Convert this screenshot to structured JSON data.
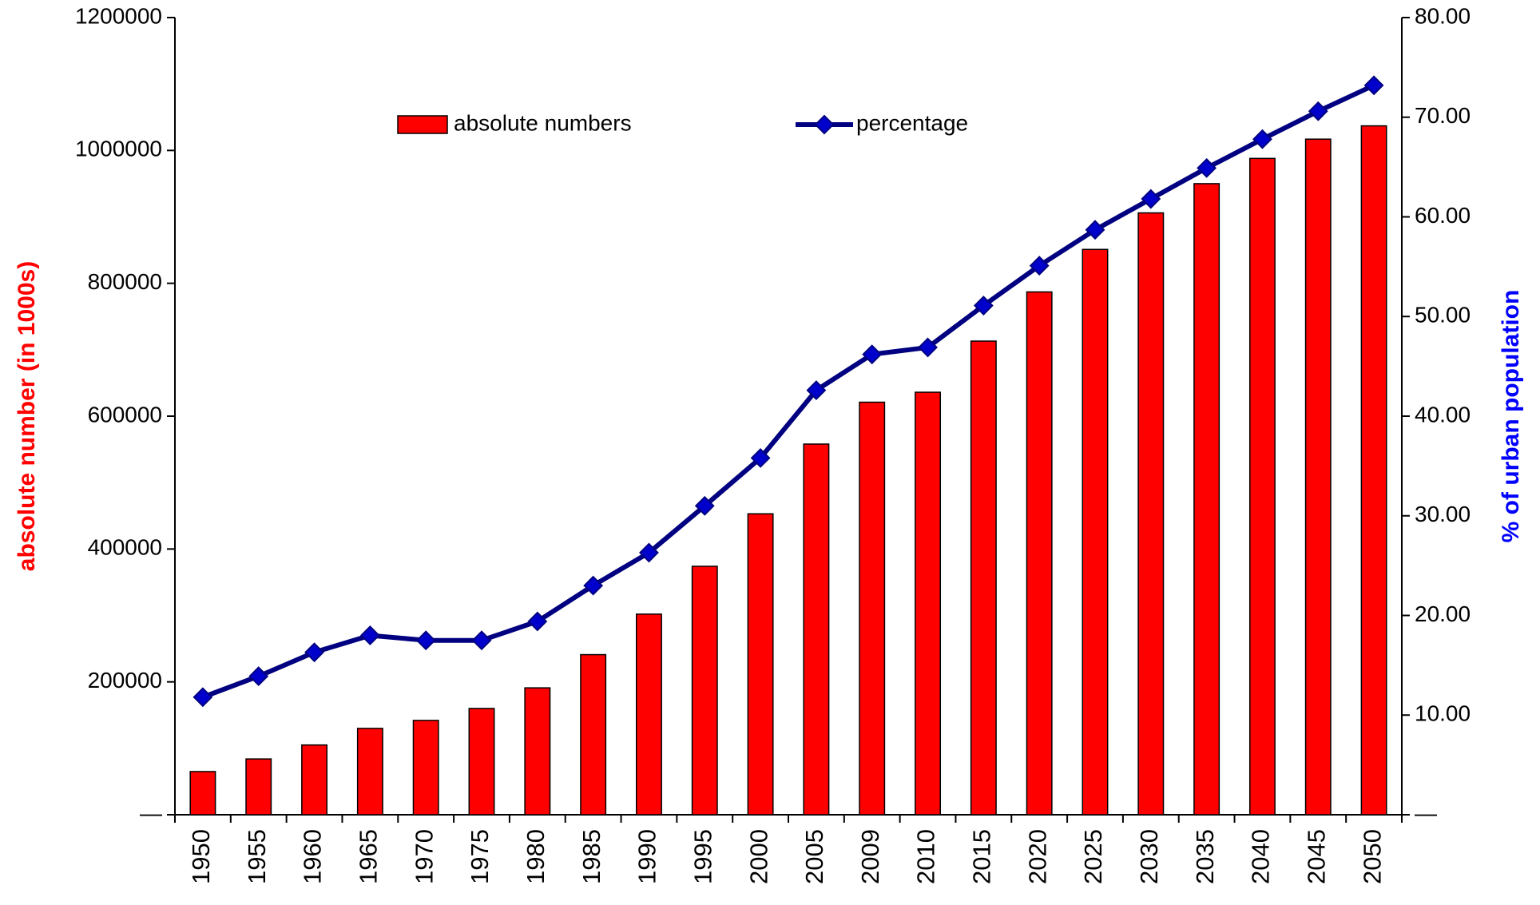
{
  "chart_data": {
    "type": "bar_line",
    "categories": [
      "1950",
      "1955",
      "1960",
      "1965",
      "1970",
      "1975",
      "1980",
      "1985",
      "1990",
      "1995",
      "2000",
      "2005",
      "2009",
      "2010",
      "2015",
      "2020",
      "2025",
      "2030",
      "2035",
      "2040",
      "2045",
      "2050"
    ],
    "series": [
      {
        "name": "absolute numbers",
        "type": "bar",
        "color": "#ff0000",
        "axis": "y",
        "values": [
          65000,
          84000,
          105000,
          130000,
          142000,
          160000,
          191000,
          241000,
          302000,
          374000,
          453000,
          558000,
          621000,
          636000,
          713000,
          787000,
          851000,
          906000,
          950000,
          988000,
          1017000,
          1037000
        ]
      },
      {
        "name": "percentage",
        "type": "line",
        "color": "#000080",
        "marker_color": "#0000cc",
        "axis": "y2",
        "values": [
          11.8,
          13.9,
          16.3,
          18.0,
          17.5,
          17.5,
          19.4,
          23.0,
          26.3,
          31.0,
          35.8,
          42.6,
          46.2,
          46.9,
          51.1,
          55.1,
          58.7,
          61.8,
          64.9,
          67.8,
          70.6,
          73.2
        ]
      }
    ],
    "y_label": "absolute number (in 1000s)",
    "y_label_color": "#ff0000",
    "y2_label": "% of urban population",
    "y2_label_color": "#0000ff",
    "ylim": [
      0,
      1200000
    ],
    "yticks": [
      {
        "value": 0,
        "label": "—"
      },
      200000,
      400000,
      600000,
      800000,
      1000000,
      1200000
    ],
    "y2lim": [
      0,
      80
    ],
    "y2ticks": [
      {
        "value": 0,
        "label": "—"
      },
      {
        "value": 10,
        "label": "10.00"
      },
      {
        "value": 20,
        "label": "20.00"
      },
      {
        "value": 30,
        "label": "30.00"
      },
      {
        "value": 40,
        "label": "40.00"
      },
      {
        "value": 50,
        "label": "50.00"
      },
      {
        "value": 60,
        "label": "60.00"
      },
      {
        "value": 70,
        "label": "70.00"
      },
      {
        "value": 80,
        "label": "80.00"
      }
    ],
    "grid": false,
    "legend": "top"
  }
}
